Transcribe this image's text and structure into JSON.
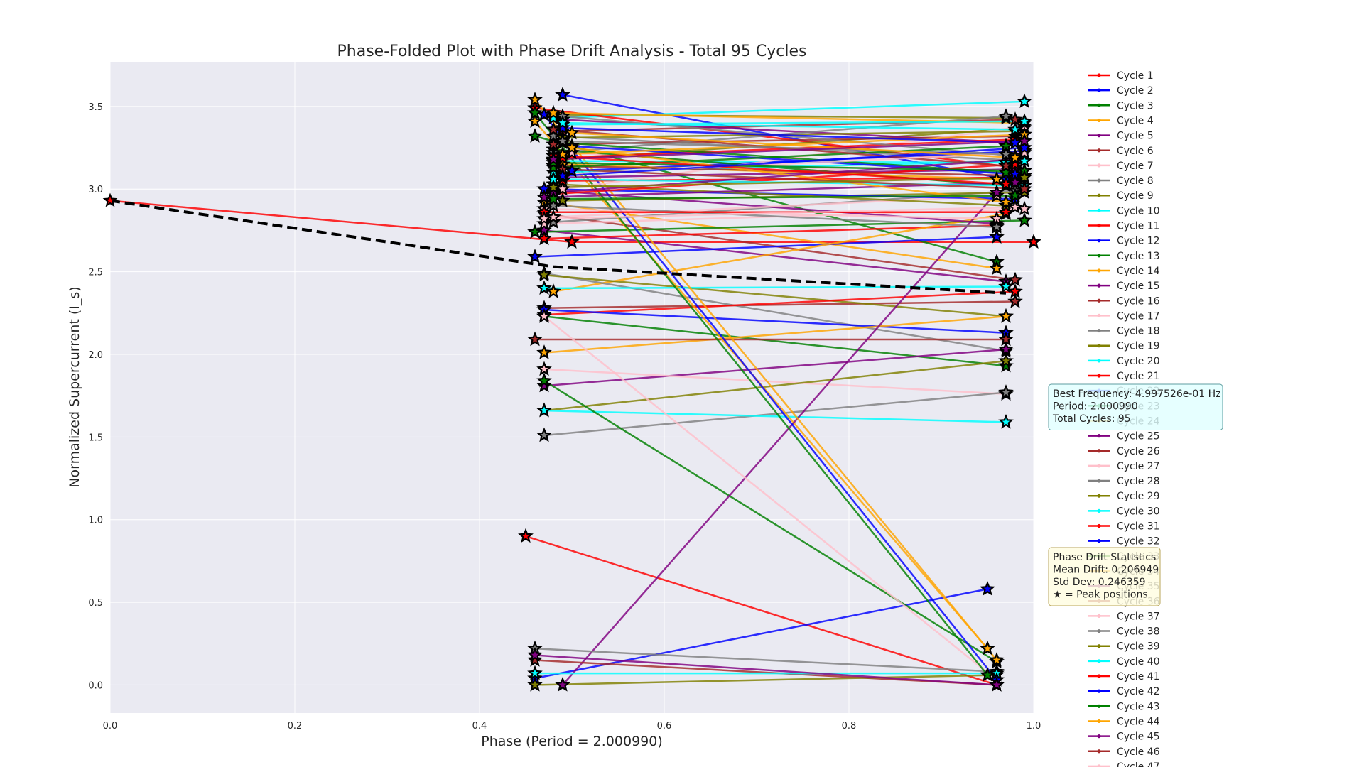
{
  "chart_data": {
    "type": "line",
    "title": "Phase-Folded Plot with Phase Drift Analysis - Total 95 Cycles",
    "xlabel": "Phase (Period = 2.000990)",
    "ylabel": "Normalized Supercurrent (I_s)",
    "xlim": [
      0.0,
      1.0
    ],
    "ylim": [
      -0.17,
      3.77
    ],
    "xticks": [
      "0.0",
      "0.2",
      "0.4",
      "0.6",
      "0.8",
      "1.0"
    ],
    "yticks": [
      "0.0",
      "0.5",
      "1.0",
      "1.5",
      "2.0",
      "2.5",
      "3.0",
      "3.5"
    ],
    "grid": true,
    "legend_placement": "outside-right",
    "palette": [
      "#ff0000",
      "#0000ff",
      "#008000",
      "#ffa500",
      "#800080",
      "#a52a2a",
      "#ffc0cb",
      "#808080",
      "#808000",
      "#00ffff"
    ],
    "drift_line": {
      "x": [
        0.0,
        0.48,
        0.97
      ],
      "y": [
        2.93,
        2.53,
        2.37
      ]
    },
    "series": [
      {
        "name": "Cycle 1",
        "x": [
          0.0,
          0.5,
          1.0
        ],
        "y": [
          2.93,
          2.68,
          2.68
        ]
      },
      {
        "name": "Cycle 2",
        "x": [
          0.49,
          0.97
        ],
        "y": [
          3.57,
          3.06
        ]
      },
      {
        "name": "Cycle 3",
        "x": [
          0.46,
          0.96
        ],
        "y": [
          3.32,
          2.56
        ]
      },
      {
        "name": "Cycle 4",
        "x": [
          0.47,
          0.96
        ],
        "y": [
          2.92,
          2.52
        ]
      },
      {
        "name": "Cycle 5",
        "x": [
          0.47,
          0.97
        ],
        "y": [
          2.75,
          2.44
        ]
      },
      {
        "name": "Cycle 6",
        "x": [
          0.47,
          0.98
        ],
        "y": [
          2.85,
          2.45
        ]
      },
      {
        "name": "Cycle 7",
        "x": [
          0.47,
          0.99
        ],
        "y": [
          2.79,
          2.88
        ]
      },
      {
        "name": "Cycle 8",
        "x": [
          0.48,
          0.98
        ],
        "y": [
          2.8,
          2.99
        ]
      },
      {
        "name": "Cycle 9",
        "x": [
          0.48,
          0.97
        ],
        "y": [
          3.45,
          3.43
        ]
      },
      {
        "name": "Cycle 10",
        "x": [
          0.48,
          0.99
        ],
        "y": [
          3.43,
          3.53
        ]
      },
      {
        "name": "Cycle 11",
        "x": [
          0.47,
          0.96
        ],
        "y": [
          2.7,
          2.78
        ]
      },
      {
        "name": "Cycle 12",
        "x": [
          0.46,
          0.96
        ],
        "y": [
          2.59,
          2.71
        ]
      },
      {
        "name": "Cycle 13",
        "x": [
          0.46,
          0.99
        ],
        "y": [
          2.74,
          2.81
        ]
      },
      {
        "name": "Cycle 14",
        "x": [
          0.48,
          0.97
        ],
        "y": [
          2.38,
          2.85
        ]
      },
      {
        "name": "Cycle 15",
        "x": [
          0.48,
          0.96
        ],
        "y": [
          2.99,
          2.79
        ]
      },
      {
        "name": "Cycle 16",
        "x": [
          0.47,
          0.98
        ],
        "y": [
          2.28,
          2.32
        ]
      },
      {
        "name": "Cycle 17",
        "x": [
          0.48,
          0.96
        ],
        "y": [
          2.83,
          2.96
        ]
      },
      {
        "name": "Cycle 18",
        "x": [
          0.47,
          0.97
        ],
        "y": [
          2.49,
          2.02
        ]
      },
      {
        "name": "Cycle 19",
        "x": [
          0.47,
          0.97
        ],
        "y": [
          2.48,
          2.23
        ]
      },
      {
        "name": "Cycle 20",
        "x": [
          0.47,
          0.97
        ],
        "y": [
          2.4,
          2.41
        ]
      },
      {
        "name": "Cycle 21",
        "x": [
          0.47,
          0.98
        ],
        "y": [
          2.24,
          2.38
        ]
      },
      {
        "name": "Cycle 22",
        "x": [
          0.47,
          0.97
        ],
        "y": [
          2.27,
          2.13
        ]
      },
      {
        "name": "Cycle 23",
        "x": [
          0.47,
          0.97
        ],
        "y": [
          2.23,
          1.93
        ]
      },
      {
        "name": "Cycle 24",
        "x": [
          0.47,
          0.97
        ],
        "y": [
          2.01,
          2.23
        ]
      },
      {
        "name": "Cycle 25",
        "x": [
          0.47,
          0.97
        ],
        "y": [
          1.81,
          2.03
        ]
      },
      {
        "name": "Cycle 26",
        "x": [
          0.46,
          0.97
        ],
        "y": [
          2.09,
          2.09
        ]
      },
      {
        "name": "Cycle 27",
        "x": [
          0.47,
          0.97
        ],
        "y": [
          1.91,
          1.76
        ]
      },
      {
        "name": "Cycle 28",
        "x": [
          0.47,
          0.97
        ],
        "y": [
          1.51,
          1.77
        ]
      },
      {
        "name": "Cycle 29",
        "x": [
          0.47,
          0.97
        ],
        "y": [
          1.66,
          1.96
        ]
      },
      {
        "name": "Cycle 30",
        "x": [
          0.47,
          0.97
        ],
        "y": [
          1.66,
          1.59
        ]
      },
      {
        "name": "Cycle 31",
        "x": [
          0.45,
          0.96
        ],
        "y": [
          0.9,
          0.0
        ]
      },
      {
        "name": "Cycle 32",
        "x": [
          0.46,
          0.95
        ],
        "y": [
          0.04,
          0.58
        ]
      },
      {
        "name": "Cycle 33",
        "x": [
          0.47,
          0.96
        ],
        "y": [
          1.84,
          0.14
        ]
      },
      {
        "name": "Cycle 34",
        "x": [
          0.46,
          0.95
        ],
        "y": [
          3.41,
          0.22
        ]
      },
      {
        "name": "Cycle 35",
        "x": [
          0.49,
          0.96
        ],
        "y": [
          0.0,
          2.98
        ]
      },
      {
        "name": "Cycle 36",
        "x": [
          0.46,
          0.96
        ],
        "y": [
          0.15,
          0.0
        ]
      },
      {
        "name": "Cycle 37",
        "x": [
          0.47,
          0.96
        ],
        "y": [
          2.23,
          0.03
        ]
      },
      {
        "name": "Cycle 38",
        "x": [
          0.46,
          0.96
        ],
        "y": [
          0.22,
          0.08
        ]
      },
      {
        "name": "Cycle 39",
        "x": [
          0.46,
          0.96
        ],
        "y": [
          0.0,
          0.06
        ]
      },
      {
        "name": "Cycle 40",
        "x": [
          0.46,
          0.96
        ],
        "y": [
          0.07,
          0.07
        ]
      },
      {
        "name": "Cycle 41",
        "x": [
          0.46,
          0.98
        ],
        "y": [
          3.49,
          3.13
        ]
      },
      {
        "name": "Cycle 42",
        "x": [
          0.47,
          0.96
        ],
        "y": [
          3.45,
          0.03
        ]
      },
      {
        "name": "Cycle 43",
        "x": [
          0.46,
          0.95
        ],
        "y": [
          3.46,
          0.06
        ]
      },
      {
        "name": "Cycle 44",
        "x": [
          0.46,
          0.96
        ],
        "y": [
          3.54,
          0.15
        ]
      },
      {
        "name": "Cycle 45",
        "x": [
          0.46,
          0.96
        ],
        "y": [
          0.18,
          0.0
        ]
      },
      {
        "name": "Cycle 46",
        "x": [
          0.49,
          0.98
        ],
        "y": [
          3.35,
          3.42
        ]
      },
      {
        "name": "Cycle 47",
        "x": [
          0.5,
          0.98
        ],
        "y": [
          3.22,
          3.05
        ]
      },
      {
        "x": [
          0.48,
          0.99
        ],
        "y": [
          3.32,
          3.17
        ]
      },
      {
        "x": [
          0.49,
          0.99
        ],
        "y": [
          3.18,
          3.37
        ]
      },
      {
        "x": [
          0.48,
          0.97
        ],
        "y": [
          3.17,
          3.16
        ]
      },
      {
        "x": [
          0.49,
          0.98
        ],
        "y": [
          3.05,
          3.07
        ]
      },
      {
        "x": [
          0.5,
          0.99
        ],
        "y": [
          3.11,
          3.23
        ]
      },
      {
        "x": [
          0.48,
          0.97
        ],
        "y": [
          3.24,
          3.02
        ]
      },
      {
        "x": [
          0.49,
          0.96
        ],
        "y": [
          3.15,
          3.06
        ]
      },
      {
        "x": [
          0.49,
          0.98
        ],
        "y": [
          3.42,
          3.28
        ]
      },
      {
        "x": [
          0.48,
          0.98
        ],
        "y": [
          3.27,
          3.32
        ]
      },
      {
        "x": [
          0.49,
          0.99
        ],
        "y": [
          3.0,
          3.38
        ]
      },
      {
        "x": [
          0.48,
          0.97
        ],
        "y": [
          3.22,
          3.44
        ]
      },
      {
        "x": [
          0.49,
          0.99
        ],
        "y": [
          2.93,
          2.98
        ]
      },
      {
        "x": [
          0.48,
          0.99
        ],
        "y": [
          3.1,
          3.17
        ]
      },
      {
        "x": [
          0.49,
          0.98
        ],
        "y": [
          3.19,
          3.3
        ]
      },
      {
        "x": [
          0.47,
          0.98
        ],
        "y": [
          3.0,
          2.94
        ]
      },
      {
        "x": [
          0.49,
          0.97
        ],
        "y": [
          3.28,
          3.1
        ]
      },
      {
        "x": [
          0.48,
          0.99
        ],
        "y": [
          3.46,
          3.4
        ]
      },
      {
        "x": [
          0.49,
          0.98
        ],
        "y": [
          3.07,
          3.12
        ]
      },
      {
        "x": [
          0.48,
          0.99
        ],
        "y": [
          3.14,
          3.08
        ]
      },
      {
        "x": [
          0.47,
          0.96
        ],
        "y": [
          2.88,
          2.82
        ]
      },
      {
        "x": [
          0.49,
          0.98
        ],
        "y": [
          3.44,
          3.2
        ]
      },
      {
        "x": [
          0.48,
          0.97
        ],
        "y": [
          3.03,
          2.9
        ]
      },
      {
        "x": [
          0.49,
          0.99
        ],
        "y": [
          3.39,
          3.41
        ]
      },
      {
        "x": [
          0.48,
          0.98
        ],
        "y": [
          2.97,
          3.15
        ]
      },
      {
        "x": [
          0.5,
          0.98
        ],
        "y": [
          3.26,
          3.09
        ]
      },
      {
        "x": [
          0.48,
          0.97
        ],
        "y": [
          3.13,
          3.26
        ]
      },
      {
        "x": [
          0.49,
          0.99
        ],
        "y": [
          3.21,
          3.33
        ]
      },
      {
        "x": [
          0.47,
          0.98
        ],
        "y": [
          2.95,
          3.04
        ]
      },
      {
        "x": [
          0.48,
          0.97
        ],
        "y": [
          3.36,
          3.14
        ]
      },
      {
        "x": [
          0.49,
          0.99
        ],
        "y": [
          3.09,
          3.22
        ]
      },
      {
        "x": [
          0.48,
          0.96
        ],
        "y": [
          2.9,
          2.77
        ]
      },
      {
        "x": [
          0.49,
          0.98
        ],
        "y": [
          3.31,
          3.35
        ]
      },
      {
        "x": [
          0.48,
          0.99
        ],
        "y": [
          3.06,
          3.02
        ]
      },
      {
        "x": [
          0.47,
          0.97
        ],
        "y": [
          2.86,
          2.86
        ]
      },
      {
        "x": [
          0.49,
          0.98
        ],
        "y": [
          3.37,
          3.28
        ]
      },
      {
        "x": [
          0.48,
          0.99
        ],
        "y": [
          3.16,
          3.11
        ]
      },
      {
        "x": [
          0.5,
          0.97
        ],
        "y": [
          3.25,
          2.92
        ]
      },
      {
        "x": [
          0.48,
          0.98
        ],
        "y": [
          2.98,
          3.18
        ]
      },
      {
        "x": [
          0.49,
          0.99
        ],
        "y": [
          3.12,
          3.0
        ]
      },
      {
        "x": [
          0.47,
          0.98
        ],
        "y": [
          2.82,
          2.89
        ]
      },
      {
        "x": [
          0.49,
          0.97
        ],
        "y": [
          3.29,
          3.21
        ]
      },
      {
        "x": [
          0.48,
          0.99
        ],
        "y": [
          3.01,
          3.07
        ]
      },
      {
        "x": [
          0.49,
          0.98
        ],
        "y": [
          3.4,
          3.36
        ]
      },
      {
        "x": [
          0.48,
          0.97
        ],
        "y": [
          3.2,
          3.03
        ]
      },
      {
        "x": [
          0.49,
          0.99
        ],
        "y": [
          3.08,
          3.25
        ]
      },
      {
        "x": [
          0.48,
          0.98
        ],
        "y": [
          2.94,
          2.96
        ]
      },
      {
        "x": [
          0.5,
          0.98
        ],
        "y": [
          3.34,
          3.19
        ]
      },
      {
        "x": [
          0.48,
          0.99
        ],
        "y": [
          3.18,
          3.29
        ]
      }
    ],
    "info_box": [
      "Best Frequency: 4.997526e-01 Hz",
      "Period: 2.000990",
      "Total Cycles: 95"
    ],
    "stats_box": [
      "Phase Drift Statistics",
      "Mean Drift: 0.206949",
      "Std Dev: 0.246359",
      "★ = Peak positions"
    ]
  }
}
